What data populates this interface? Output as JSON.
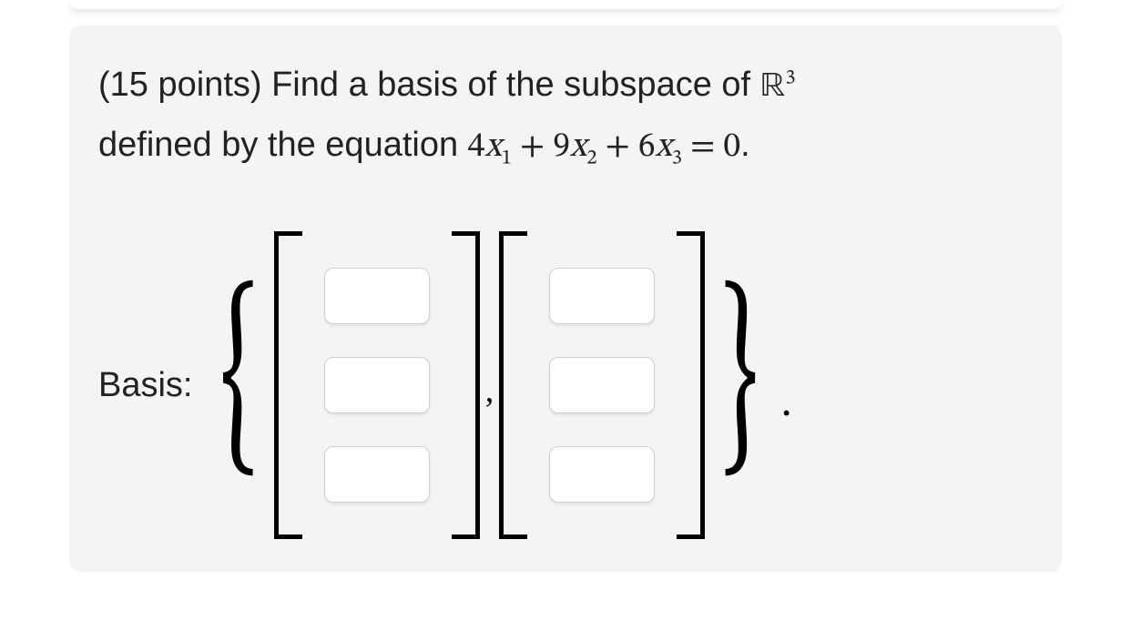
{
  "card": {
    "background_color": "#f4f4f4",
    "border_radius": 12
  },
  "question": {
    "points_prefix": "(15 points) ",
    "text_part1": "Find a basis of the subspace of ",
    "space_symbol": "ℝ",
    "space_exponent": "3",
    "text_part2": "defined by the equation ",
    "equation_terms": [
      {
        "coef": "4",
        "var": "x",
        "sub": "1",
        "sep": " + "
      },
      {
        "coef": "9",
        "var": "x",
        "sub": "2",
        "sep": " + "
      },
      {
        "coef": "6",
        "var": "x",
        "sub": "3",
        "sep": " = "
      }
    ],
    "rhs": "0",
    "tail": ".",
    "font_size": 38,
    "text_color": "#222222"
  },
  "basis": {
    "label": "Basis:",
    "set_open": "{",
    "set_close": "}",
    "separator": ",",
    "period": ".",
    "vectors": [
      {
        "rows": 3,
        "values": [
          "",
          "",
          ""
        ]
      },
      {
        "rows": 3,
        "values": [
          "",
          "",
          ""
        ]
      }
    ],
    "bracket_height": 338,
    "bracket_thickness": 5,
    "bracket_lip": 26,
    "input_box": {
      "width": 116,
      "height": 62,
      "border_radius": 10,
      "border_color": "#cfcfcf",
      "background": "#ffffff"
    },
    "gap_between_inputs": 36
  },
  "colors": {
    "page_background": "#ffffff",
    "card_background": "#f4f4f4",
    "text": "#222222",
    "math": "#000000"
  }
}
